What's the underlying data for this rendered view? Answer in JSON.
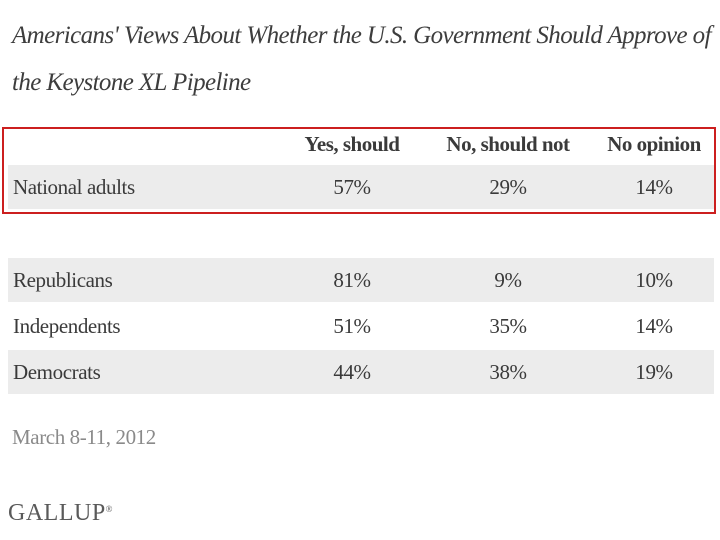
{
  "chart_data": {
    "type": "table",
    "title": "Americans' Views About Whether the U.S. Government Should Approve of the Keystone XL Pipeline",
    "columns": [
      "Yes, should",
      "No, should not",
      "No opinion"
    ],
    "rows": [
      {
        "label": "National adults",
        "values": [
          "57%",
          "29%",
          "14%"
        ]
      },
      {
        "label": "Republicans",
        "values": [
          "81%",
          "9%",
          "10%"
        ]
      },
      {
        "label": "Independents",
        "values": [
          "51%",
          "35%",
          "14%"
        ]
      },
      {
        "label": "Democrats",
        "values": [
          "44%",
          "38%",
          "19%"
        ]
      }
    ],
    "date": "March 8-11, 2012",
    "source": "GALLUP"
  },
  "colors": {
    "highlight_border": "#cc1f1f",
    "row_shade": "#ececec"
  }
}
